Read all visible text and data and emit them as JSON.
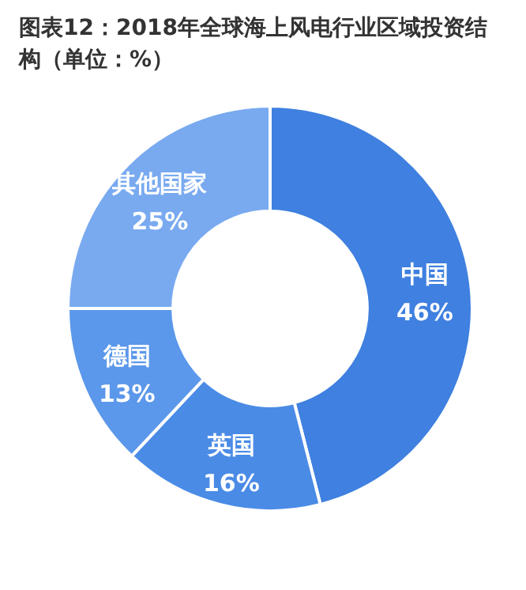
{
  "chart_data": {
    "type": "donut",
    "title": "图表12：2018年全球海上风电行业区域投资结构（单位：%）",
    "categories": [
      "中国",
      "英国",
      "德国",
      "其他国家"
    ],
    "values": [
      46,
      16,
      13,
      25
    ],
    "value_labels": [
      "46%",
      "16%",
      "13%",
      "25%"
    ],
    "colors": [
      "#3f80e0",
      "#4a8be6",
      "#5b97ea",
      "#79aaf0"
    ],
    "legend": false
  }
}
